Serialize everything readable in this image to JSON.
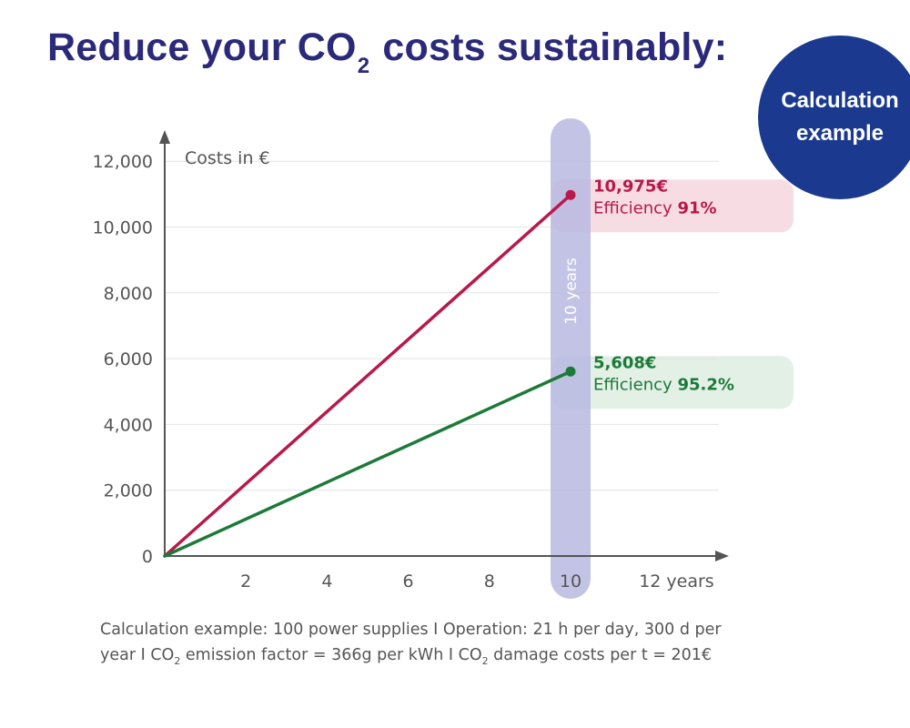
{
  "title": {
    "pre": "Reduce your CO",
    "sub": "2",
    "post": " costs sustainably:"
  },
  "badge": {
    "line1": "Calculation",
    "line2": "example"
  },
  "chart_data": {
    "type": "line",
    "ylabel": "Costs in €",
    "xlabel": "years",
    "xlim": [
      0,
      13
    ],
    "ylim": [
      0,
      12000
    ],
    "x_ticks": [
      "2",
      "4",
      "6",
      "8",
      "10",
      "12 years"
    ],
    "y_ticks": [
      "0",
      "2,000",
      "4,000",
      "6,000",
      "8,000",
      "10,000",
      "12,000"
    ],
    "grid": "horizontal",
    "highlight": {
      "x": 10,
      "label": "10 years",
      "color": "#b8b9e0"
    },
    "series": [
      {
        "color": "#b8194a",
        "band_color": "#f8dce4",
        "x": [
          0,
          10
        ],
        "y": [
          0,
          10975
        ],
        "value_label": "10,975€",
        "efficiency_label": "Efficiency ",
        "efficiency_value": "91%"
      },
      {
        "color": "#1c7a39",
        "band_color": "#e2f0e6",
        "x": [
          0,
          10
        ],
        "y": [
          0,
          5608
        ],
        "value_label": "5,608€",
        "efficiency_label": "Efficiency ",
        "efficiency_value": "95.2%"
      }
    ]
  },
  "caption": {
    "line1": "Calculation example: 100 power supplies I Operation: 21 h per day, 300 d per",
    "line2_a": "year I CO",
    "line2_sub1": "2",
    "line2_b": " emission factor = 366g per kWh I CO",
    "line2_sub2": "2",
    "line2_c": " damage costs per t = 201€"
  }
}
